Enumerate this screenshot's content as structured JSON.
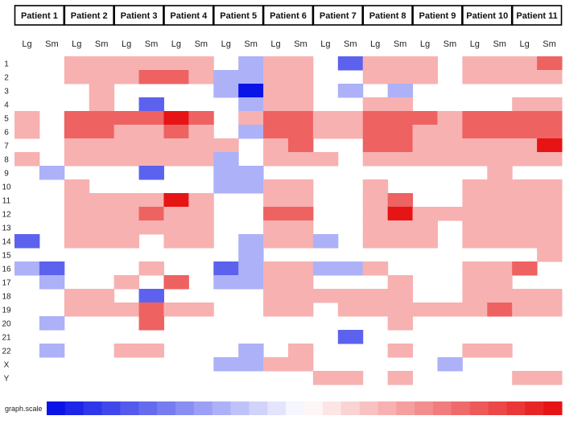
{
  "chart_data": {
    "type": "heatmap",
    "patients": [
      "Patient 1",
      "Patient 2",
      "Patient 3",
      "Patient 4",
      "Patient 5",
      "Patient 6",
      "Patient 7",
      "Patient 8",
      "Patient 9",
      "Patient 10",
      "Patient 11"
    ],
    "sub_columns": [
      "Lg",
      "Sm"
    ],
    "rows": [
      "1",
      "2",
      "3",
      "4",
      "5",
      "6",
      "7",
      "8",
      "9",
      "10",
      "11",
      "12",
      "13",
      "14",
      "15",
      "16",
      "17",
      "18",
      "19",
      "20",
      "21",
      "22",
      "X",
      "Y"
    ],
    "value_range": [
      -3,
      3
    ],
    "values": [
      [
        0,
        0,
        1,
        1,
        1,
        1,
        1,
        1,
        0,
        -1,
        1,
        1,
        0,
        -2,
        1,
        1,
        1,
        0,
        1,
        1,
        1,
        2
      ],
      [
        0,
        0,
        1,
        1,
        1,
        2,
        2,
        1,
        -1,
        -1,
        1,
        1,
        0,
        0,
        1,
        1,
        1,
        0,
        1,
        1,
        1,
        1
      ],
      [
        0,
        0,
        0,
        1,
        0,
        0,
        0,
        0,
        -1,
        -3,
        1,
        1,
        0,
        -1,
        0,
        -1,
        0,
        0,
        0,
        0,
        0,
        0
      ],
      [
        0,
        0,
        0,
        1,
        0,
        -2,
        0,
        0,
        0,
        -1,
        1,
        1,
        0,
        0,
        1,
        1,
        0,
        0,
        0,
        0,
        1,
        1
      ],
      [
        1,
        0,
        2,
        2,
        2,
        2,
        3,
        2,
        0,
        1,
        2,
        2,
        1,
        1,
        2,
        2,
        2,
        1,
        2,
        2,
        2,
        2
      ],
      [
        1,
        0,
        2,
        2,
        1,
        1,
        2,
        1,
        0,
        -1,
        2,
        2,
        1,
        1,
        2,
        2,
        1,
        1,
        2,
        2,
        2,
        2
      ],
      [
        0,
        0,
        1,
        1,
        1,
        1,
        1,
        1,
        1,
        0,
        1,
        2,
        0,
        0,
        2,
        2,
        1,
        1,
        1,
        1,
        1,
        3
      ],
      [
        1,
        0,
        1,
        1,
        1,
        1,
        1,
        1,
        -1,
        0,
        1,
        1,
        1,
        0,
        1,
        1,
        1,
        1,
        1,
        1,
        1,
        1
      ],
      [
        0,
        -1,
        0,
        0,
        0,
        -2,
        0,
        0,
        -1,
        -1,
        0,
        0,
        0,
        0,
        0,
        0,
        0,
        0,
        0,
        1,
        0,
        0
      ],
      [
        0,
        0,
        1,
        0,
        0,
        0,
        0,
        0,
        -1,
        -1,
        1,
        1,
        0,
        0,
        1,
        0,
        0,
        0,
        1,
        1,
        1,
        1
      ],
      [
        0,
        0,
        1,
        1,
        1,
        1,
        3,
        1,
        0,
        0,
        1,
        1,
        0,
        0,
        1,
        2,
        0,
        0,
        1,
        1,
        1,
        1
      ],
      [
        0,
        0,
        1,
        1,
        1,
        2,
        1,
        1,
        0,
        0,
        2,
        2,
        0,
        0,
        1,
        3,
        1,
        1,
        1,
        1,
        1,
        1
      ],
      [
        0,
        0,
        1,
        1,
        1,
        1,
        1,
        1,
        0,
        0,
        1,
        1,
        0,
        0,
        1,
        1,
        1,
        0,
        1,
        1,
        1,
        1
      ],
      [
        -2,
        0,
        1,
        1,
        1,
        0,
        1,
        1,
        0,
        -1,
        1,
        1,
        -1,
        0,
        1,
        1,
        1,
        0,
        1,
        1,
        1,
        1
      ],
      [
        0,
        0,
        0,
        0,
        0,
        0,
        0,
        0,
        0,
        -1,
        0,
        0,
        0,
        0,
        0,
        0,
        0,
        0,
        0,
        0,
        0,
        1
      ],
      [
        -1,
        -2,
        0,
        0,
        0,
        1,
        0,
        0,
        -2,
        -1,
        1,
        1,
        -1,
        -1,
        1,
        0,
        0,
        0,
        1,
        1,
        2,
        0
      ],
      [
        0,
        -1,
        0,
        0,
        1,
        0,
        2,
        0,
        -1,
        -1,
        1,
        1,
        0,
        0,
        0,
        1,
        0,
        0,
        1,
        1,
        0,
        0
      ],
      [
        0,
        0,
        1,
        1,
        0,
        -2,
        0,
        0,
        0,
        0,
        1,
        1,
        1,
        1,
        1,
        1,
        0,
        0,
        1,
        1,
        1,
        1
      ],
      [
        0,
        0,
        1,
        1,
        1,
        2,
        1,
        1,
        0,
        0,
        1,
        1,
        0,
        1,
        1,
        1,
        1,
        1,
        1,
        2,
        1,
        1
      ],
      [
        0,
        -1,
        0,
        0,
        0,
        2,
        0,
        0,
        0,
        0,
        0,
        0,
        0,
        0,
        0,
        1,
        0,
        0,
        0,
        0,
        0,
        0
      ],
      [
        0,
        0,
        0,
        0,
        0,
        0,
        0,
        0,
        0,
        0,
        0,
        0,
        0,
        -2,
        0,
        0,
        0,
        0,
        0,
        0,
        0,
        0
      ],
      [
        0,
        -1,
        0,
        0,
        1,
        1,
        0,
        0,
        0,
        -1,
        0,
        1,
        0,
        0,
        0,
        1,
        0,
        0,
        1,
        1,
        0,
        0
      ],
      [
        0,
        0,
        0,
        0,
        0,
        0,
        0,
        0,
        -1,
        -1,
        1,
        1,
        0,
        0,
        0,
        0,
        0,
        -1,
        0,
        0,
        0,
        0
      ],
      [
        0,
        0,
        0,
        0,
        0,
        0,
        0,
        0,
        0,
        0,
        0,
        0,
        1,
        1,
        0,
        1,
        0,
        0,
        0,
        0,
        1,
        1
      ]
    ],
    "legend": {
      "label": "graph.scale",
      "steps": 28,
      "colors": [
        "#0a14e6",
        "#ffffff",
        "#e61414"
      ]
    }
  }
}
